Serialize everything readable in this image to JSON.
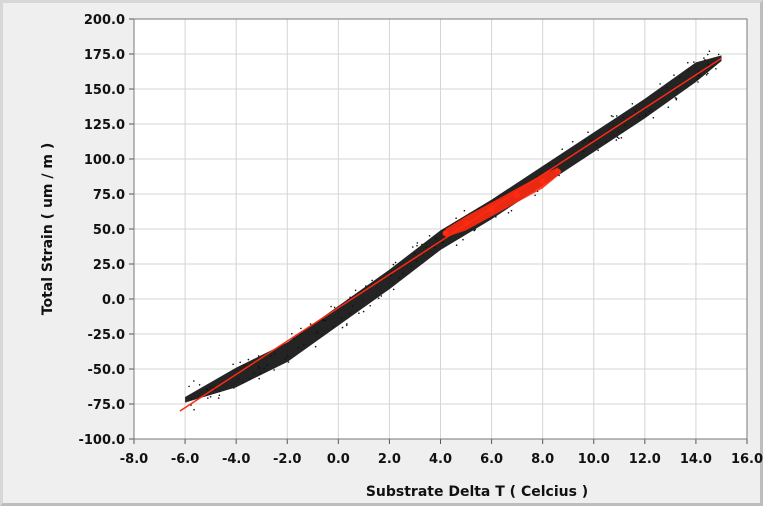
{
  "chart_data": {
    "type": "scatter",
    "title": "",
    "xlabel": "Substrate Delta T ( Celcius )",
    "ylabel": "Total Strain ( um / m )",
    "xlim": [
      -8,
      16
    ],
    "ylim": [
      -100,
      200
    ],
    "grid": true,
    "legend": "none",
    "x_ticks": [
      "-8.0",
      "-6.0",
      "-4.0",
      "-2.0",
      "0.0",
      "2.0",
      "4.0",
      "6.0",
      "8.0",
      "10.0",
      "12.0",
      "14.0",
      "16.0"
    ],
    "y_ticks": [
      "200.0",
      "175.0",
      "150.0",
      "125.0",
      "100.0",
      "75.0",
      "50.0",
      "25.0",
      "0.0",
      "-25.0",
      "-50.0",
      "-75.0",
      "-100.0"
    ],
    "series": [
      {
        "color": "#000000",
        "style": "dense scatter band",
        "x": [
          -6.0,
          -4.0,
          -2.0,
          0.0,
          2.0,
          4.0,
          6.0,
          8.0,
          10.0,
          12.0,
          14.0,
          15.0
        ],
        "y": [
          -72,
          -56,
          -38,
          -12,
          14,
          42,
          64,
          88,
          112,
          136,
          162,
          172
        ]
      },
      {
        "color": "#ff2a10",
        "style": "fit line",
        "x": [
          -6.2,
          15.0
        ],
        "y": [
          -80,
          172
        ]
      },
      {
        "color": "#ff2a10",
        "style": "dense red cluster",
        "x": [
          4.2,
          5.0,
          6.0,
          7.0,
          8.0,
          8.6
        ],
        "y": [
          47,
          54,
          64,
          74,
          84,
          91
        ]
      }
    ]
  }
}
